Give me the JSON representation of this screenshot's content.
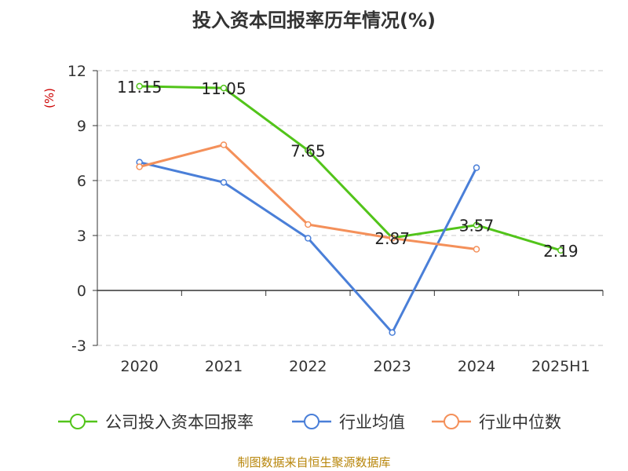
{
  "chart_data": {
    "type": "line",
    "title": "投入资本回报率历年情况(%)",
    "ylabel": "(%)",
    "categories": [
      "2020",
      "2021",
      "2022",
      "2023",
      "2024",
      "2025H1"
    ],
    "ylim": [
      -3,
      12
    ],
    "yticks": [
      -3,
      0,
      3,
      6,
      9,
      12
    ],
    "grid": true,
    "legend_position": "bottom",
    "series": [
      {
        "name": "公司投入资本回报率",
        "color": "#52c41a",
        "values": [
          11.15,
          11.05,
          7.65,
          2.87,
          3.57,
          2.19
        ],
        "labels": [
          "11.15",
          "11.05",
          "7.65",
          "2.87",
          "3.57",
          "2.19"
        ]
      },
      {
        "name": "行业均值",
        "color": "#4a7fd8",
        "values": [
          7.0,
          5.9,
          2.85,
          -2.3,
          6.7,
          null
        ]
      },
      {
        "name": "行业中位数",
        "color": "#f4905a",
        "values": [
          6.75,
          7.95,
          3.6,
          2.85,
          2.25,
          null
        ]
      }
    ]
  },
  "source": "制图数据来自恒生聚源数据库"
}
